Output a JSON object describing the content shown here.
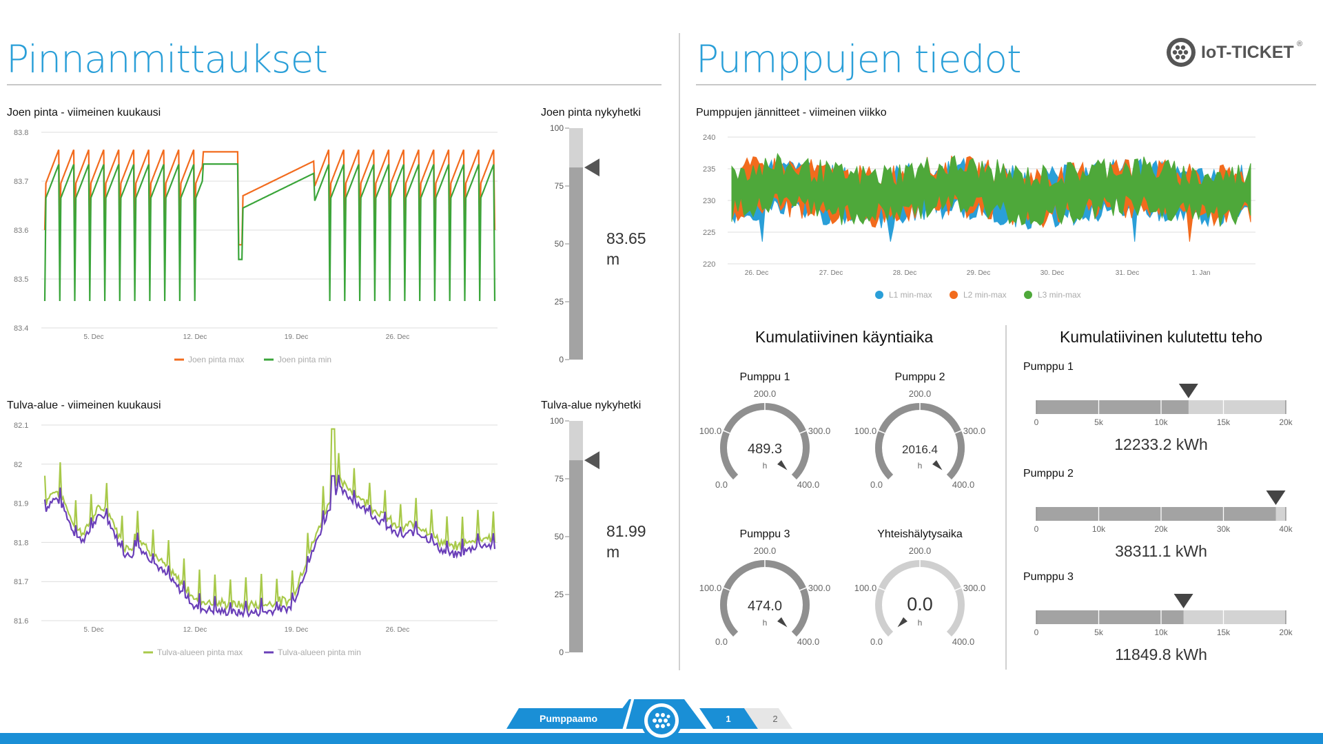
{
  "left_title": "Pinnanmittaukset",
  "right_title": "Pumppujen tiedot",
  "logo": {
    "text": "IoT-TICKET",
    "mark": "®"
  },
  "river_chart": {
    "title": "Joen pinta - viimeinen kuukausi",
    "y_ticks": [
      "83.8",
      "83.7",
      "83.6",
      "83.5",
      "83.4"
    ],
    "x_ticks": [
      "5. Dec",
      "12. Dec",
      "19. Dec",
      "26. Dec"
    ],
    "legend": [
      "Joen pinta max",
      "Joen pinta min"
    ],
    "colors": [
      "#f26b1d",
      "#3aa53a"
    ]
  },
  "river_now": {
    "title": "Joen pinta nykyhetki",
    "ticks": [
      "100",
      "75",
      "50",
      "25",
      "0"
    ],
    "value": "83.65",
    "unit": "m"
  },
  "flood_chart": {
    "title": "Tulva-alue - viimeinen kuukausi",
    "y_ticks": [
      "82.1",
      "82",
      "81.9",
      "81.8",
      "81.7",
      "81.6"
    ],
    "x_ticks": [
      "5. Dec",
      "12. Dec",
      "19. Dec",
      "26. Dec"
    ],
    "legend": [
      "Tulva-alueen pinta max",
      "Tulva-alueen pinta min"
    ],
    "colors": [
      "#a8c94a",
      "#6a3fb8"
    ]
  },
  "flood_now": {
    "title": "Tulva-alue nykyhetki",
    "ticks": [
      "100",
      "75",
      "50",
      "25",
      "0"
    ],
    "value": "81.99",
    "unit": "m"
  },
  "voltage_chart": {
    "title": "Pumppujen jännitteet - viimeinen viikko",
    "y_ticks": [
      "240",
      "235",
      "230",
      "225",
      "220"
    ],
    "x_ticks": [
      "26. Dec",
      "27. Dec",
      "28. Dec",
      "29. Dec",
      "30. Dec",
      "31. Dec",
      "1. Jan"
    ],
    "legend": [
      "L1 min-max",
      "L2 min-max",
      "L3 min-max"
    ],
    "colors": [
      "#2a9fd8",
      "#f26b1d",
      "#4ea83a"
    ]
  },
  "runtime": {
    "title": "Kumulatiivinen käyntiaika",
    "gauges": [
      {
        "name": "Pumppu 1",
        "value": "489.3",
        "unit": "h",
        "ticks": [
          "0.0",
          "100.0",
          "200.0",
          "300.0",
          "400.0"
        ],
        "fraction": 1.0
      },
      {
        "name": "Pumppu 2",
        "value": "2016.4",
        "unit": "h",
        "ticks": [
          "0.0",
          "100.0",
          "200.0",
          "300.0",
          "400.0"
        ],
        "fraction": 1.0
      },
      {
        "name": "Pumppu 3",
        "value": "474.0",
        "unit": "h",
        "ticks": [
          "0.0",
          "100.0",
          "200.0",
          "300.0",
          "400.0"
        ],
        "fraction": 1.0
      },
      {
        "name": "Yhteishälytysaika",
        "value": "0.0",
        "unit": "h",
        "ticks": [
          "0.0",
          "100.0",
          "200.0",
          "300.0",
          "400.0"
        ],
        "fraction": 0.0
      }
    ]
  },
  "energy": {
    "title": "Kumulatiivinen kulutettu teho",
    "bars": [
      {
        "name": "Pumppu 1",
        "value": "12233.2 kWh",
        "ticks": [
          "0",
          "5k",
          "10k",
          "15k",
          "20k"
        ],
        "fraction": 0.61
      },
      {
        "name": "Pumppu 2",
        "value": "38311.1 kWh",
        "ticks": [
          "0",
          "10k",
          "20k",
          "30k",
          "40k"
        ],
        "fraction": 0.96
      },
      {
        "name": "Pumppu 3",
        "value": "11849.8 kWh",
        "ticks": [
          "0",
          "5k",
          "10k",
          "15k",
          "20k"
        ],
        "fraction": 0.59
      }
    ]
  },
  "nav": {
    "section": "Pumppaamo",
    "pages": [
      "1",
      "2"
    ]
  }
}
